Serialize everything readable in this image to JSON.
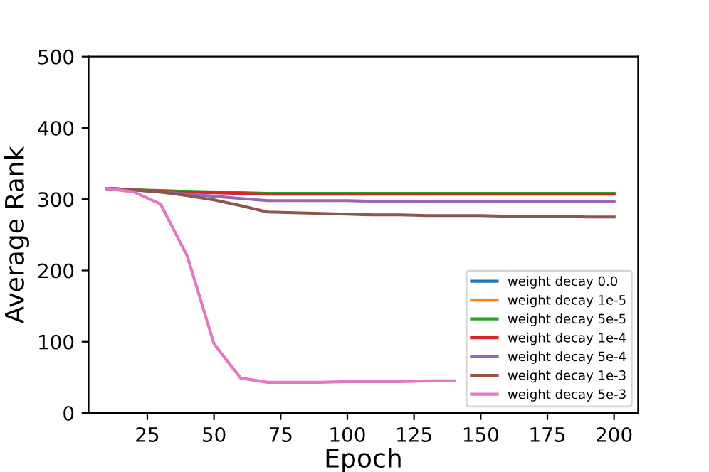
{
  "chart_data": {
    "type": "line",
    "xlabel": "Epoch",
    "ylabel": "Average Rank",
    "x": [
      10,
      20,
      30,
      40,
      50,
      60,
      70,
      80,
      90,
      100,
      110,
      120,
      130,
      140,
      150,
      160,
      170,
      180,
      190,
      200
    ],
    "xlim": [
      3,
      209
    ],
    "xticks": [
      25,
      50,
      75,
      100,
      125,
      150,
      175,
      200
    ],
    "ylim": [
      0,
      500
    ],
    "yticks": [
      0,
      100,
      200,
      300,
      400,
      500
    ],
    "legend": "bottom right",
    "grid": false,
    "marker": "none",
    "line_style": "solid",
    "series": [
      {
        "name": "weight decay 0.0",
        "color": "#1f77b4",
        "values": [
          null,
          null,
          null,
          null,
          null,
          null,
          null,
          null,
          null,
          null,
          null,
          null,
          null,
          null,
          null,
          null,
          null,
          null,
          null,
          null
        ]
      },
      {
        "name": "weight decay 1e-5",
        "color": "#ff7f0e",
        "values": [
          null,
          null,
          null,
          null,
          null,
          null,
          null,
          null,
          null,
          null,
          null,
          null,
          null,
          null,
          null,
          null,
          null,
          null,
          null,
          null
        ]
      },
      {
        "name": "weight decay 5e-5",
        "color": "#2ca02c",
        "values": [
          315,
          313,
          312,
          311,
          310,
          309,
          308,
          308,
          308,
          308,
          308,
          308,
          308,
          308,
          308,
          308,
          308,
          308,
          308,
          308
        ]
      },
      {
        "name": "weight decay 1e-4",
        "color": "#d62728",
        "values": [
          315,
          313,
          311,
          310,
          309,
          308,
          307,
          307,
          307,
          307,
          307,
          307,
          307,
          307,
          307,
          307,
          307,
          307,
          307,
          307
        ]
      },
      {
        "name": "weight decay 5e-4",
        "color": "#9467bd",
        "values": [
          315,
          313,
          310,
          307,
          304,
          301,
          298,
          298,
          298,
          298,
          297,
          297,
          297,
          297,
          297,
          297,
          297,
          297,
          297,
          297
        ]
      },
      {
        "name": "weight decay 1e-3",
        "color": "#8c564b",
        "values": [
          315,
          313,
          310,
          305,
          299,
          291,
          282,
          281,
          280,
          279,
          278,
          278,
          277,
          277,
          277,
          276,
          276,
          276,
          275,
          275
        ]
      },
      {
        "name": "weight decay 5e-3",
        "color": "#e377c2",
        "values": [
          315,
          310,
          293,
          220,
          97,
          49,
          43,
          43,
          43,
          44,
          44,
          44,
          45,
          45,
          null,
          null,
          null,
          null,
          null,
          null
        ]
      }
    ]
  }
}
